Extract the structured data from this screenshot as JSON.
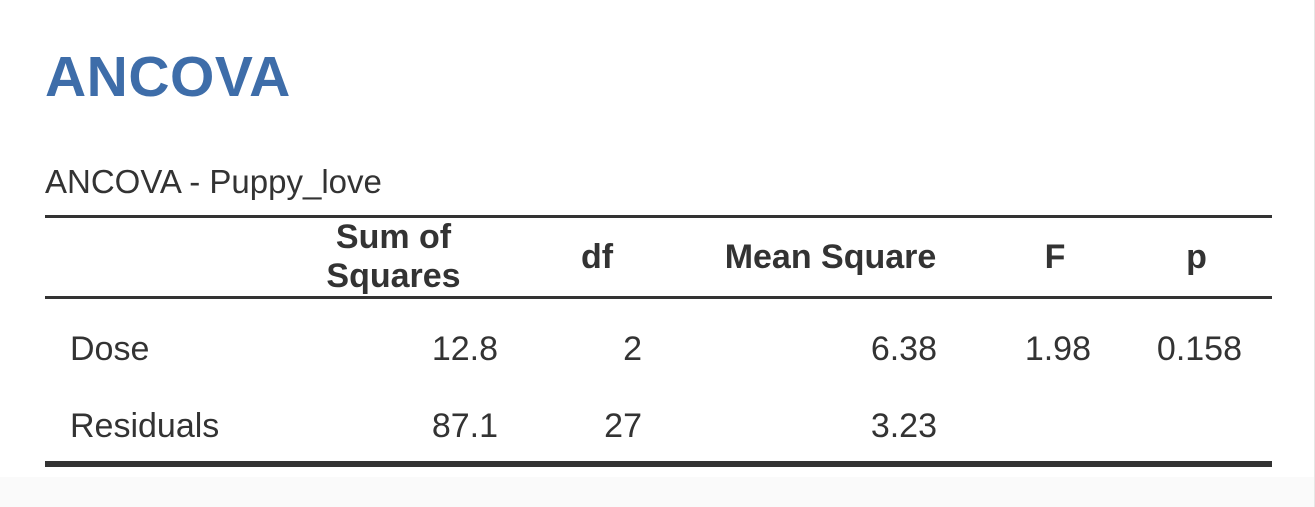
{
  "analysis": {
    "heading": "ANCOVA",
    "table_title": "ANCOVA - Puppy_love"
  },
  "table": {
    "columns": {
      "label": "",
      "sum_of_squares": "Sum of Squares",
      "df": "df",
      "mean_square": "Mean Square",
      "f": "F",
      "p": "p"
    },
    "rows": [
      {
        "label": "Dose",
        "sum_of_squares": "12.8",
        "df": "2",
        "mean_square": "6.38",
        "f": "1.98",
        "p": "0.158"
      },
      {
        "label": "Residuals",
        "sum_of_squares": "87.1",
        "df": "27",
        "mean_square": "3.23",
        "f": "",
        "p": ""
      }
    ]
  },
  "colors": {
    "heading": "#3e6da9",
    "text": "#333333",
    "rule": "#333333"
  }
}
